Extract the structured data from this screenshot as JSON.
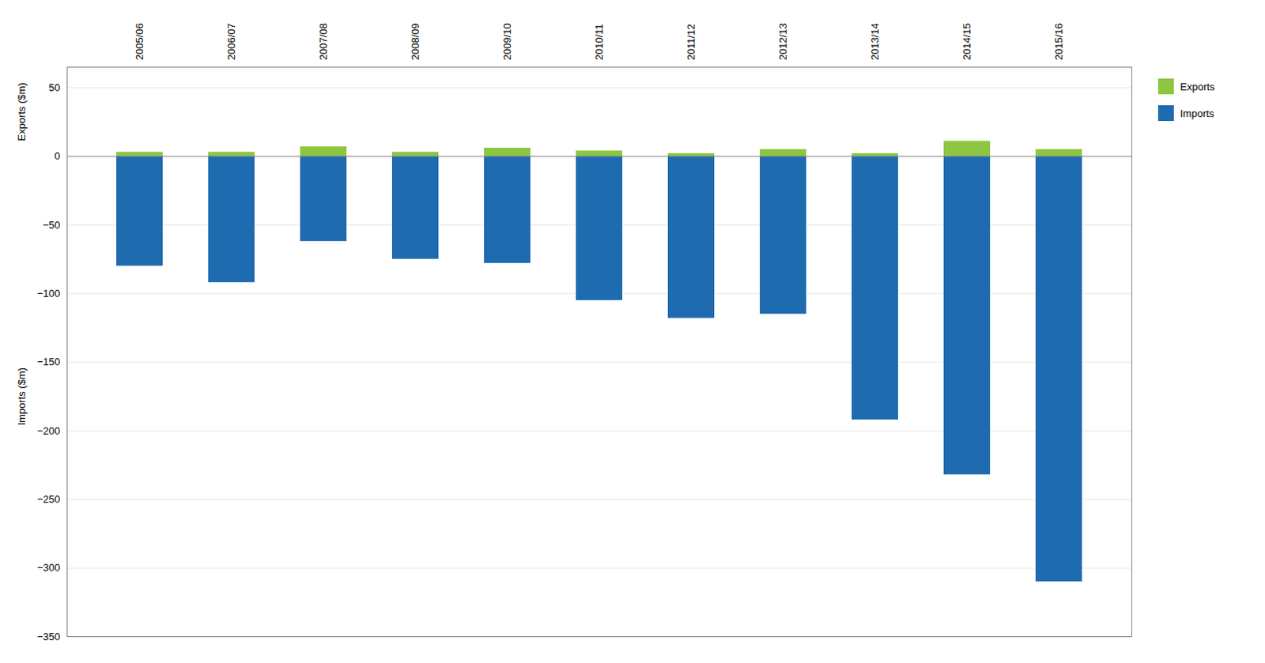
{
  "chart_data": {
    "type": "bar",
    "categories": [
      "2005/06",
      "2006/07",
      "2007/08",
      "2008/09",
      "2009/10",
      "2010/11",
      "2011/12",
      "2012/13",
      "2013/14",
      "2014/15",
      "2015/16"
    ],
    "series": [
      {
        "name": "Exports",
        "color": "#8dc63f",
        "values": [
          3,
          3,
          7,
          3,
          6,
          4,
          2,
          5,
          2,
          11,
          5
        ]
      },
      {
        "name": "Imports",
        "color": "#1f6bb0",
        "values": [
          -80,
          -92,
          -62,
          -75,
          -78,
          -105,
          -118,
          -115,
          -192,
          -232,
          -310
        ]
      }
    ],
    "ylabels": [
      "Exports ($m)",
      "Imports ($m)"
    ],
    "ylim": [
      -350,
      65
    ],
    "yticks": [
      50,
      0,
      -50,
      -100,
      -150,
      -200,
      -250,
      -300,
      -350
    ],
    "grid": true,
    "legend": "upper right"
  }
}
